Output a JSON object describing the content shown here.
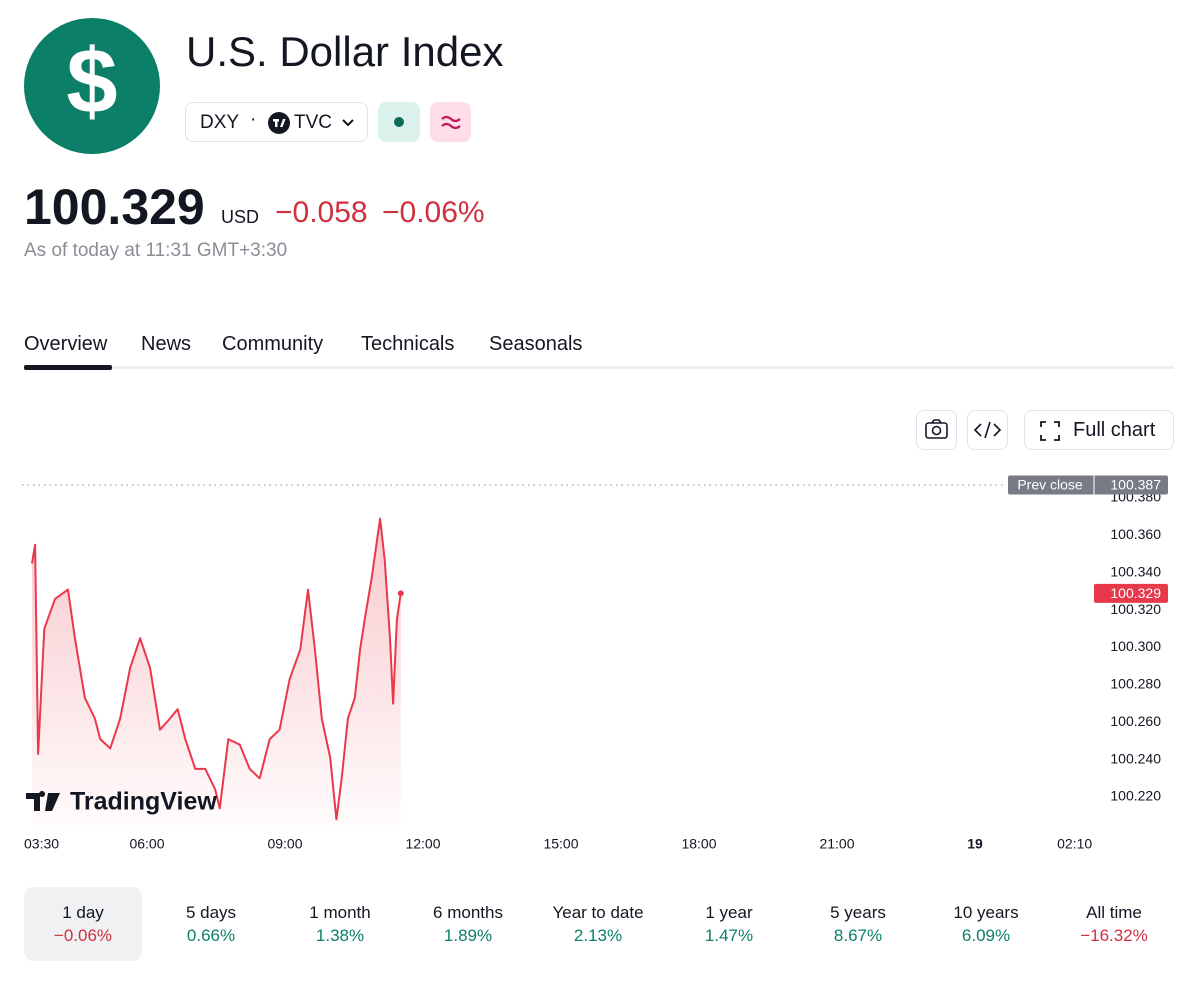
{
  "header": {
    "logo": "$",
    "title": "U.S. Dollar Index",
    "symbol": "DXY",
    "exchange": "TVC",
    "price": "100.329",
    "currency": "USD",
    "change": "−0.058",
    "change_pct": "−0.06%",
    "as_of": "As of today at 11:31 GMT+3:30"
  },
  "tabs": [
    "Overview",
    "News",
    "Community",
    "Technicals",
    "Seasonals"
  ],
  "toolbar": {
    "full_chart": "Full chart"
  },
  "chart_data": {
    "type": "line",
    "watermark": "TradingView",
    "x": [
      "03:30",
      "03:34",
      "03:38",
      "03:46",
      "04:00",
      "04:17",
      "04:26",
      "04:39",
      "04:52",
      "04:59",
      "05:12",
      "05:25",
      "05:38",
      "05:51",
      "06:04",
      "06:17",
      "06:30",
      "06:40",
      "06:50",
      "07:03",
      "07:16",
      "07:29",
      "07:35",
      "07:46",
      "08:01",
      "08:14",
      "08:27",
      "08:40",
      "08:53",
      "09:06",
      "09:20",
      "09:30",
      "09:39",
      "09:48",
      "09:59",
      "10:07",
      "10:14",
      "10:22",
      "10:31",
      "10:38",
      "10:44",
      "10:53",
      "11:04",
      "11:10",
      "11:17",
      "11:21",
      "11:26",
      "11:31"
    ],
    "series": [
      {
        "name": "DXY",
        "color": "#e8394a",
        "values": [
          100.345,
          100.355,
          100.243,
          100.31,
          100.326,
          100.331,
          100.305,
          100.273,
          100.262,
          100.251,
          100.246,
          100.262,
          100.289,
          100.305,
          100.289,
          100.256,
          100.262,
          100.267,
          100.251,
          100.235,
          100.235,
          100.224,
          100.214,
          100.251,
          100.248,
          100.235,
          100.23,
          100.251,
          100.256,
          100.283,
          100.299,
          100.331,
          100.299,
          100.262,
          100.241,
          100.208,
          100.23,
          100.262,
          100.273,
          100.299,
          100.315,
          100.337,
          100.369,
          100.347,
          100.305,
          100.27,
          100.315,
          100.329
        ]
      }
    ],
    "prev_close": {
      "label": "Prev close",
      "value": {
        "value": 100.387,
        "label": "100.387"
      }
    },
    "xlim": [
      "03:30",
      "02:30"
    ],
    "xticks": [
      "03:30",
      "06:00",
      "09:00",
      "12:00",
      "15:00",
      "18:00",
      "21:00",
      {
        "value": "00:00",
        "label": "19"
      },
      "02:10"
    ],
    "ylim": [
      100.205,
      100.395
    ],
    "yticks": [
      {
        "value": 100.22,
        "label": "100.220"
      },
      {
        "value": 100.24,
        "label": "100.240"
      },
      {
        "value": 100.26,
        "label": "100.260"
      },
      {
        "value": 100.28,
        "label": "100.280"
      },
      {
        "value": 100.3,
        "label": "100.300"
      },
      {
        "value": 100.32,
        "label": "100.320"
      },
      {
        "value": 100.34,
        "label": "100.340"
      },
      {
        "value": 100.36,
        "label": "100.360"
      },
      {
        "value": 100.38,
        "label": "100.380"
      }
    ]
  },
  "periods": [
    {
      "label": "1 day",
      "change": "−0.06%"
    },
    {
      "label": "5 days",
      "change": "0.66%"
    },
    {
      "label": "1 month",
      "change": "1.38%"
    },
    {
      "label": "6 months",
      "change": "1.89%"
    },
    {
      "label": "Year to date",
      "change": "2.13%"
    },
    {
      "label": "1 year",
      "change": "1.47%"
    },
    {
      "label": "5 years",
      "change": "8.67%"
    },
    {
      "label": "10 years",
      "change": "6.09%"
    },
    {
      "label": "All time",
      "change": "−16.32%"
    }
  ]
}
